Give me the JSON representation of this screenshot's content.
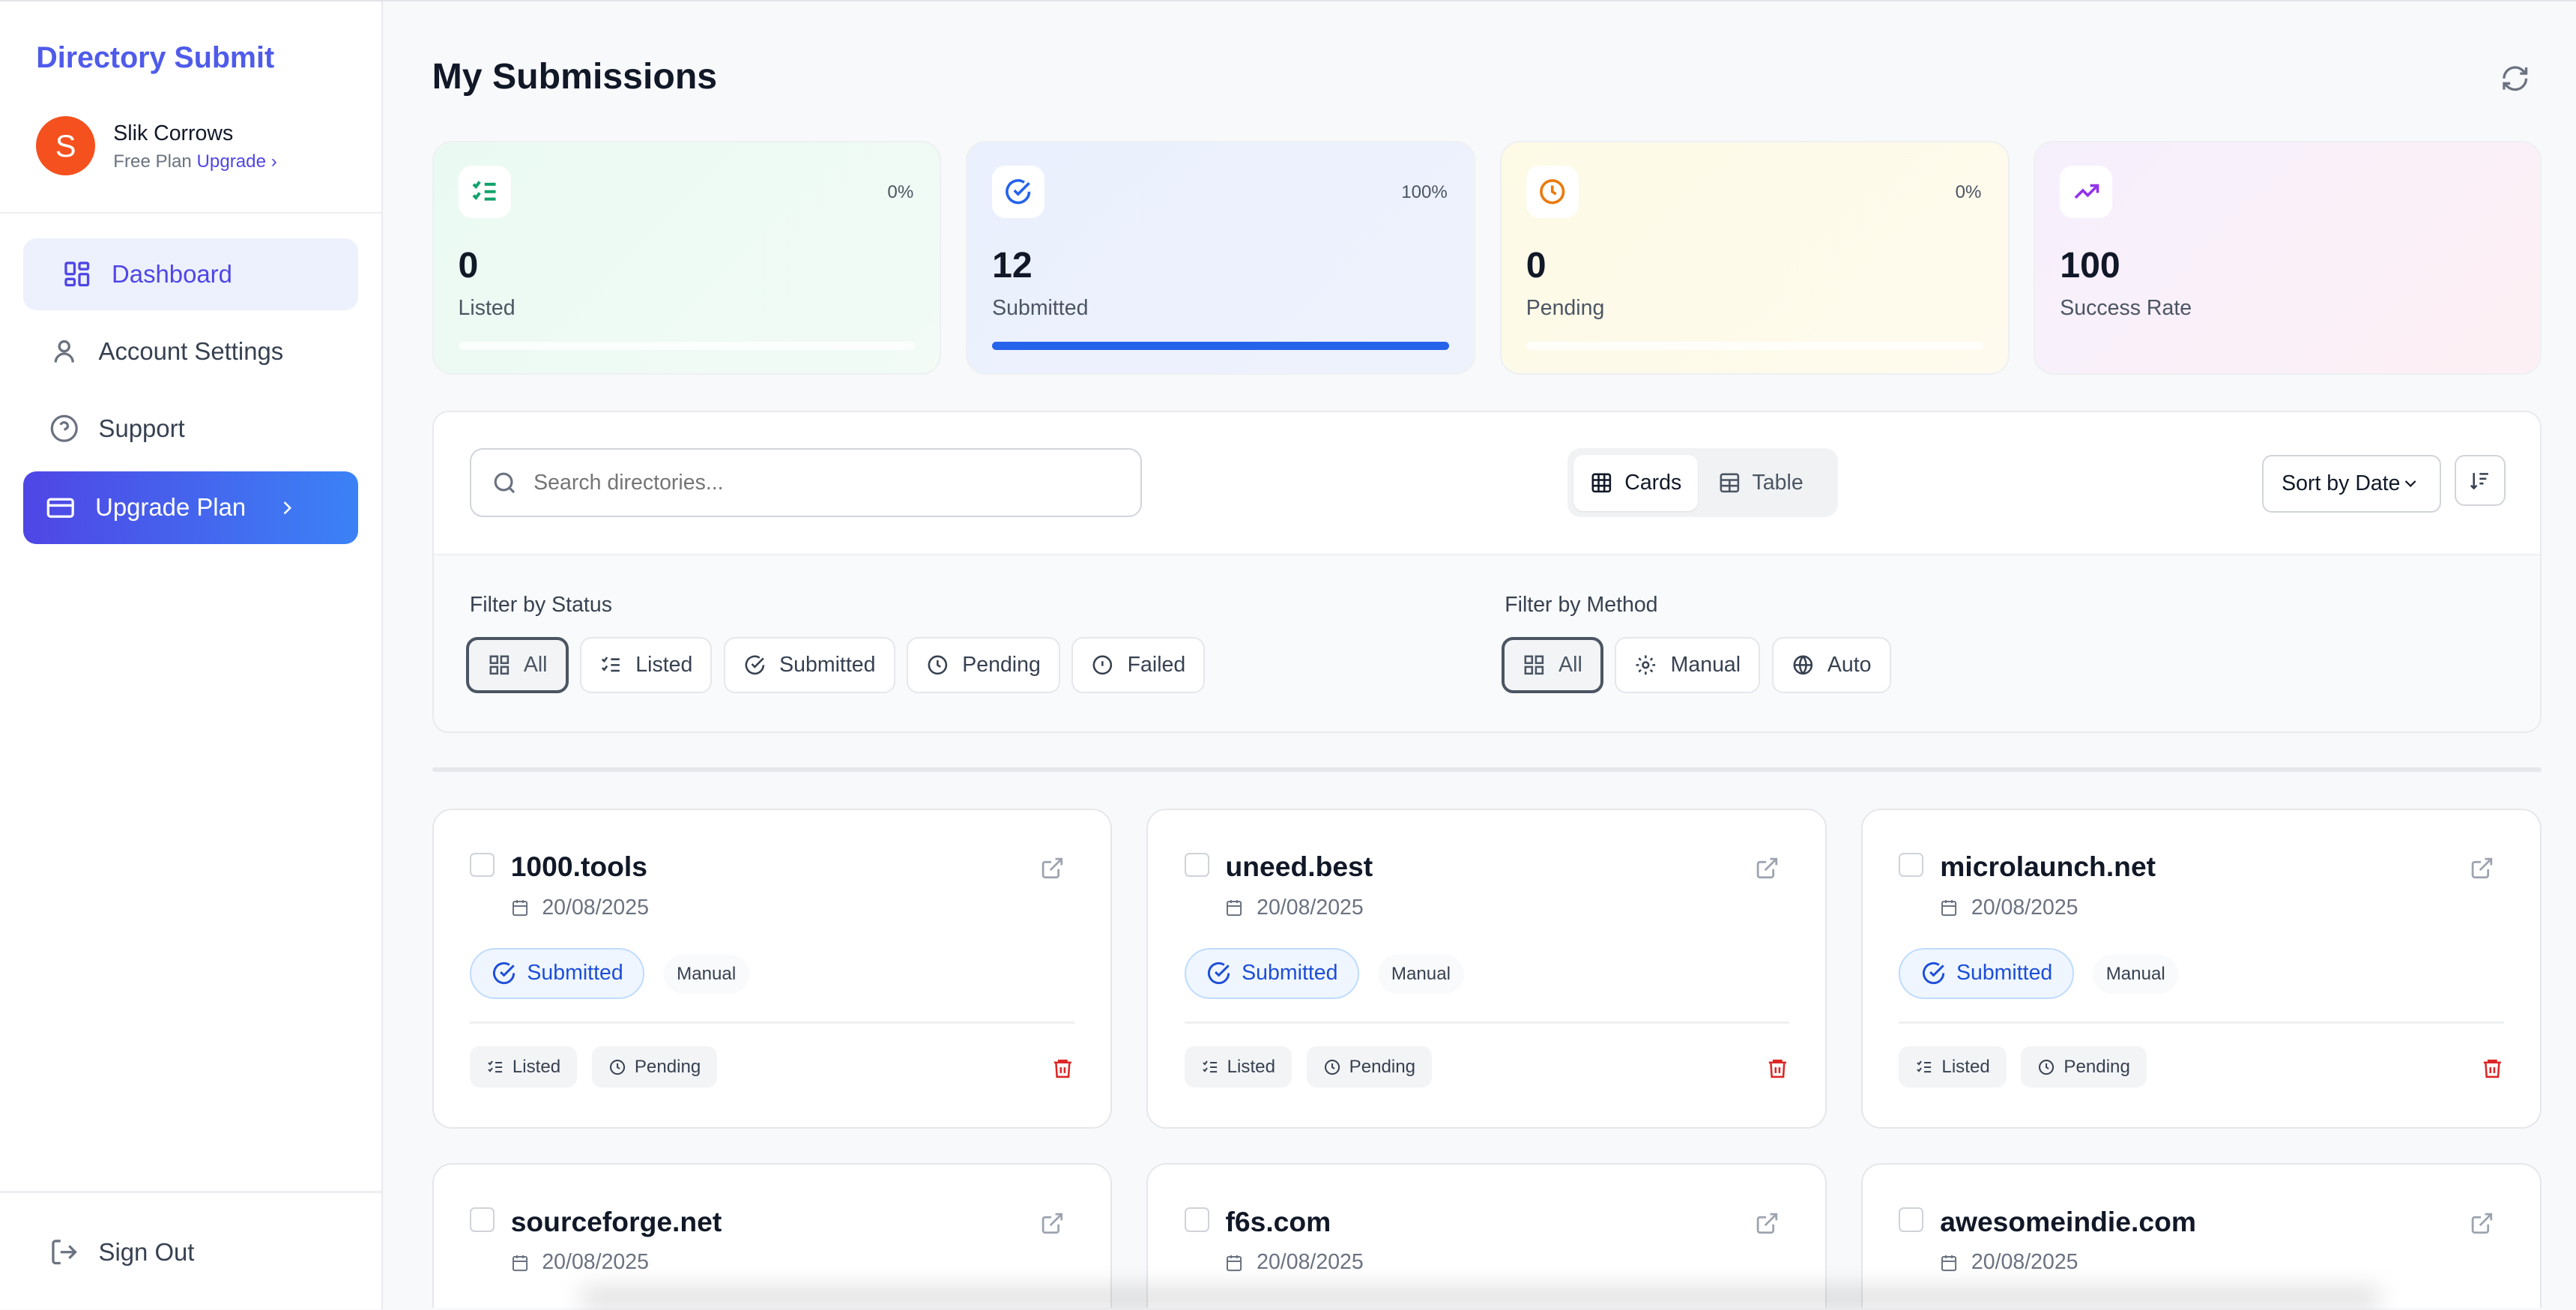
{
  "app": {
    "brand": "Directory Submit"
  },
  "user": {
    "initial": "S",
    "name": "Slik Corrows",
    "plan": "Free Plan",
    "upgrade_link": "Upgrade ›"
  },
  "sidebar": {
    "items": [
      {
        "label": "Dashboard",
        "icon": "dashboard-icon",
        "active": true
      },
      {
        "label": "Account Settings",
        "icon": "user-icon"
      },
      {
        "label": "Support",
        "icon": "help-circle-icon"
      },
      {
        "label": "Upgrade Plan",
        "icon": "credit-card-icon"
      }
    ],
    "sign_out": "Sign Out"
  },
  "page": {
    "title": "My Submissions"
  },
  "stats": [
    {
      "value": "0",
      "label": "Listed",
      "percent": "0%",
      "progress": 0,
      "color": "#10a36b"
    },
    {
      "value": "12",
      "label": "Submitted",
      "percent": "100%",
      "progress": 100,
      "color": "#2563eb"
    },
    {
      "value": "0",
      "label": "Pending",
      "percent": "0%",
      "progress": 0,
      "color": "#ea7a0c"
    },
    {
      "value": "100",
      "label": "Success Rate",
      "color": "#9333ea"
    }
  ],
  "toolbar": {
    "search_placeholder": "Search directories...",
    "view_cards": "Cards",
    "view_table": "Table",
    "sort": "Sort by Date"
  },
  "filters": {
    "status_label": "Filter by Status",
    "status": [
      "All",
      "Listed",
      "Submitted",
      "Pending",
      "Failed"
    ],
    "method_label": "Filter by Method",
    "method": [
      "All",
      "Manual",
      "Auto"
    ]
  },
  "cards": [
    {
      "name": "1000.tools",
      "date": "20/08/2025",
      "status": "Submitted",
      "method": "Manual",
      "actions": [
        "Listed",
        "Pending"
      ]
    },
    {
      "name": "uneed.best",
      "date": "20/08/2025",
      "status": "Submitted",
      "method": "Manual",
      "actions": [
        "Listed",
        "Pending"
      ]
    },
    {
      "name": "microlaunch.net",
      "date": "20/08/2025",
      "status": "Submitted",
      "method": "Manual",
      "actions": [
        "Listed",
        "Pending"
      ]
    },
    {
      "name": "sourceforge.net",
      "date": "20/08/2025"
    },
    {
      "name": "f6s.com",
      "date": "20/08/2025"
    },
    {
      "name": "awesomeindie.com",
      "date": "20/08/2025"
    }
  ]
}
